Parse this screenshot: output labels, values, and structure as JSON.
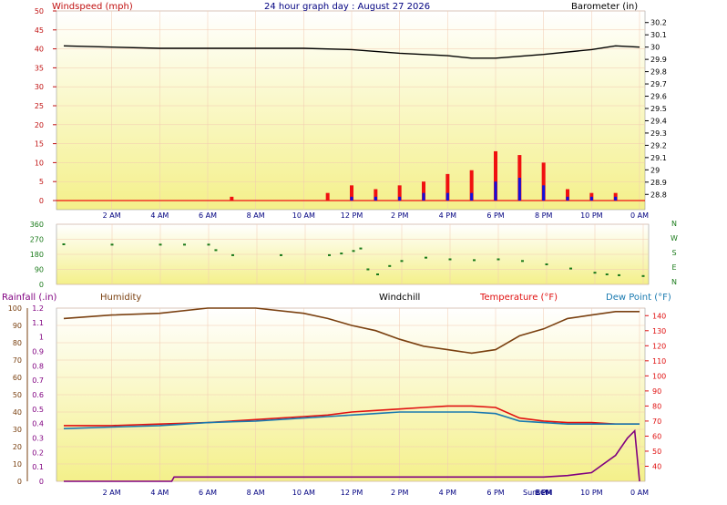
{
  "header": {
    "left_label": "Windspeed (mph)",
    "title": "24 hour graph day : August 27 2026",
    "right_label": "Barometer (in)"
  },
  "time_axis": {
    "labels": [
      "2 AM",
      "4 AM",
      "6 AM",
      "8 AM",
      "10 AM",
      "12 PM",
      "2 PM",
      "4 PM",
      "6 PM",
      "8 PM",
      "10 PM",
      "0 AM"
    ],
    "hours": [
      2,
      4,
      6,
      8,
      10,
      12,
      14,
      16,
      18,
      20,
      22,
      24
    ],
    "sun_labels": [
      "Sunset",
      "ECM"
    ]
  },
  "colors": {
    "bg_top": "#ffffff",
    "bg_bottom": "#f4f08a",
    "grid": "#f2c9b0",
    "wind_avg": "#1010e0",
    "wind_gust": "#f01010",
    "barometer": "#000000",
    "direction": "#1a7a1a",
    "humidity": "#7a4010",
    "temperature": "#e01010",
    "dewpoint": "#1a7ab0",
    "rain": "#800080"
  },
  "panel_wind": {
    "left_ticks": [
      "50",
      "45",
      "40",
      "35",
      "30",
      "25",
      "20",
      "15",
      "10",
      "5",
      "0"
    ],
    "right_ticks": [
      "30.2",
      "30.1",
      "30",
      "29.9",
      "29.8",
      "29.7",
      "29.6",
      "29.5",
      "29.4",
      "29.3",
      "29.2",
      "29.1",
      "29",
      "28.9",
      "28.8"
    ]
  },
  "panel_dir": {
    "left_ticks": [
      "360",
      "270",
      "180",
      "90",
      "0"
    ],
    "compass": [
      "N",
      "W",
      "S",
      "E",
      "N"
    ]
  },
  "panel_temp": {
    "rain_label": "Rainfall (.in)",
    "humidity_label": "Humidity",
    "windchill_label": "Windchill",
    "temp_label": "Temperature (°F)",
    "dew_label": "Dew Point (°F)",
    "rain_ticks": [
      "1.2",
      "1.1",
      "1",
      "0.9",
      "0.8",
      "0.7",
      "0.6",
      "0.5",
      "0.4",
      "0.3",
      "0.2",
      "0.1",
      "0"
    ],
    "humidity_ticks": [
      "100",
      "90",
      "80",
      "70",
      "60",
      "50",
      "40",
      "30",
      "20",
      "10",
      "0"
    ],
    "temp_ticks": [
      "140",
      "130",
      "120",
      "110",
      "100",
      "90",
      "80",
      "70",
      "60",
      "50",
      "40"
    ]
  },
  "chart_data": [
    {
      "type": "line",
      "x_unit": "hour",
      "series": [
        {
          "name": "Barometer (in)",
          "x": [
            0,
            2,
            4,
            6,
            8,
            10,
            12,
            14,
            16,
            17,
            18,
            20,
            22,
            23,
            24
          ],
          "values": [
            30.01,
            30.0,
            29.99,
            29.99,
            29.99,
            29.99,
            29.98,
            29.95,
            29.93,
            29.91,
            29.91,
            29.94,
            29.98,
            30.01,
            30.0
          ]
        }
      ],
      "ylim": [
        28.75,
        30.25
      ]
    },
    {
      "type": "line",
      "x_unit": "hour",
      "series": [
        {
          "name": "Windspeed gust (mph)",
          "x": [
            0,
            1,
            2,
            3,
            4,
            5,
            6,
            7,
            8,
            9,
            10,
            11,
            12,
            13,
            14,
            15,
            16,
            17,
            18,
            19,
            20,
            21,
            22,
            23,
            24
          ],
          "values": [
            0,
            0,
            0,
            0,
            0,
            0,
            0,
            1,
            0,
            0,
            0,
            2,
            4,
            3,
            4,
            5,
            7,
            8,
            13,
            12,
            10,
            3,
            2,
            2,
            0
          ]
        },
        {
          "name": "Windspeed avg (mph)",
          "x": [
            0,
            1,
            2,
            3,
            4,
            5,
            6,
            7,
            8,
            9,
            10,
            11,
            12,
            13,
            14,
            15,
            16,
            17,
            18,
            19,
            20,
            21,
            22,
            23,
            24
          ],
          "values": [
            0,
            0,
            0,
            0,
            0,
            0,
            0,
            0,
            0,
            0,
            0,
            0,
            1,
            1,
            1,
            2,
            2,
            2,
            5,
            6,
            4,
            1,
            1,
            1,
            0
          ]
        }
      ],
      "ylim": [
        0,
        50
      ]
    },
    {
      "type": "scatter",
      "x_unit": "hour",
      "series": [
        {
          "name": "Wind direction (deg)",
          "x": [
            0,
            2,
            4,
            5,
            6,
            6.3,
            7,
            9,
            11,
            11.5,
            12,
            12.3,
            12.6,
            13,
            13.5,
            14,
            15,
            16,
            17,
            18,
            19,
            20,
            21,
            22,
            22.5,
            23,
            24
          ],
          "values": [
            240,
            238,
            238,
            238,
            238,
            205,
            175,
            175,
            175,
            185,
            200,
            215,
            90,
            60,
            110,
            140,
            160,
            150,
            145,
            150,
            140,
            120,
            95,
            70,
            60,
            55,
            50
          ]
        }
      ],
      "ylim": [
        0,
        360
      ]
    },
    {
      "type": "line",
      "x_unit": "hour",
      "series": [
        {
          "name": "Humidity",
          "x": [
            0,
            2,
            4,
            6,
            8,
            10,
            11,
            12,
            13,
            14,
            15,
            16,
            17,
            18,
            19,
            20,
            21,
            22,
            23,
            24
          ],
          "values": [
            94,
            96,
            97,
            100,
            100,
            97,
            94,
            90,
            87,
            82,
            78,
            76,
            74,
            76,
            84,
            88,
            94,
            96,
            98,
            98
          ]
        },
        {
          "name": "Temperature (°F)",
          "x": [
            0,
            2,
            4,
            6,
            8,
            10,
            11,
            12,
            13,
            14,
            15,
            16,
            17,
            18,
            19,
            20,
            21,
            22,
            23,
            24
          ],
          "values": [
            67,
            67,
            68,
            69,
            71,
            73,
            74,
            76,
            77,
            78,
            79,
            80,
            80,
            79,
            72,
            70,
            69,
            69,
            68,
            68
          ]
        },
        {
          "name": "Dew Point (°F)",
          "x": [
            0,
            2,
            4,
            6,
            8,
            10,
            11,
            12,
            13,
            14,
            15,
            16,
            17,
            18,
            19,
            20,
            21,
            22,
            23,
            24
          ],
          "values": [
            65,
            66,
            67,
            69,
            70,
            72,
            73,
            74,
            75,
            76,
            76,
            76,
            76,
            75,
            70,
            69,
            68,
            68,
            68,
            68
          ]
        },
        {
          "name": "Rainfall (.in)",
          "x": [
            0,
            3,
            4.5,
            4.6,
            6,
            20,
            21,
            22,
            23,
            23.5,
            23.8,
            24
          ],
          "values": [
            0,
            0,
            0,
            0.03,
            0.03,
            0.03,
            0.04,
            0.06,
            0.18,
            0.3,
            0.35,
            0
          ]
        }
      ],
      "ylim_humidity": [
        0,
        100
      ],
      "ylim_temp": [
        30,
        145
      ],
      "ylim_rain": [
        0,
        1.2
      ]
    }
  ]
}
